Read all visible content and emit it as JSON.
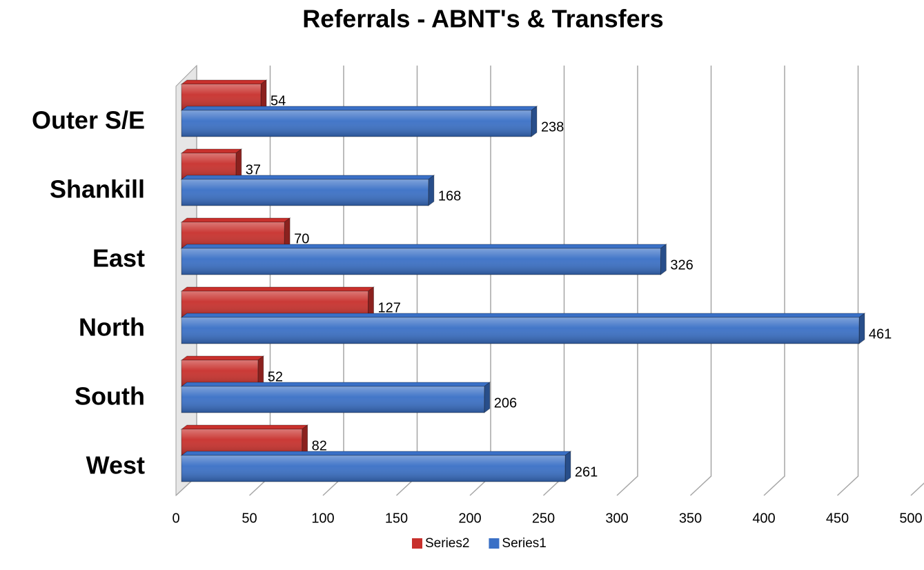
{
  "chart_data": {
    "type": "bar3d_horizontal",
    "title": "Referrals - ABNT's & Transfers",
    "categories": [
      "Outer S/E",
      "Shankill",
      "East",
      "North",
      "South",
      "West"
    ],
    "series": [
      {
        "name": "Series2",
        "color": "#c8302c",
        "values": [
          54,
          37,
          70,
          127,
          52,
          82
        ]
      },
      {
        "name": "Series1",
        "color": "#3a70c6",
        "values": [
          238,
          168,
          326,
          461,
          206,
          261
        ]
      }
    ],
    "xlim": [
      0,
      500
    ],
    "xticks": [
      0,
      50,
      100,
      150,
      200,
      250,
      300,
      350,
      400,
      450,
      500
    ],
    "grid": true,
    "legend": "bottom"
  }
}
